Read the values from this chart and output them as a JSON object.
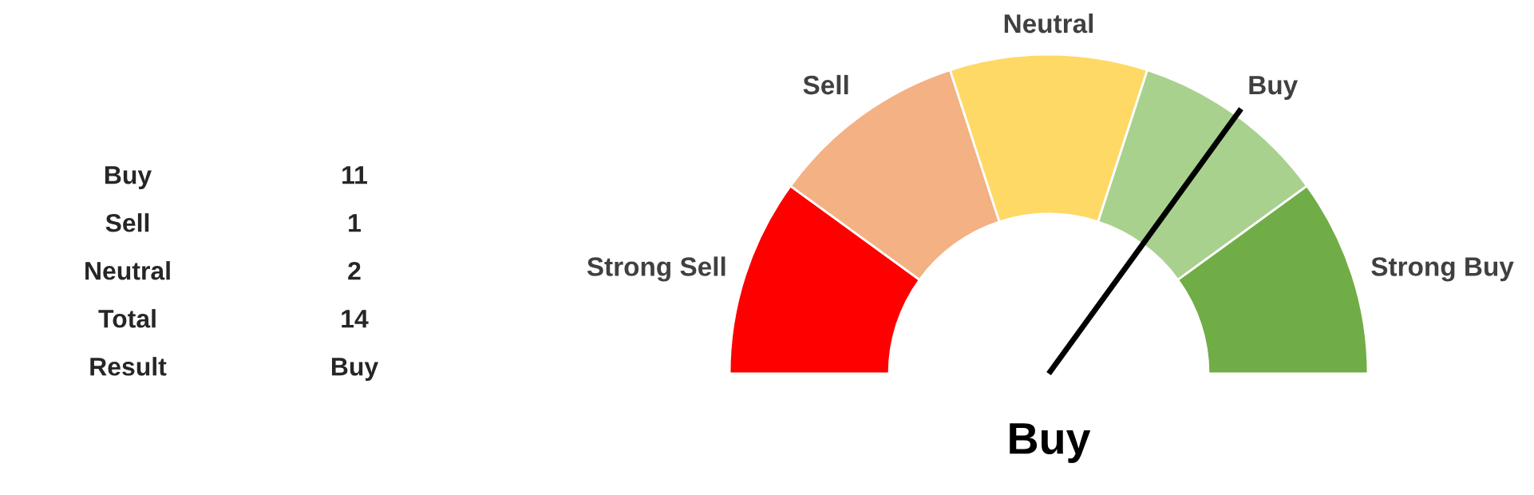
{
  "chart_data": [
    {
      "type": "other",
      "annotations": [
        "Buy",
        "11",
        "Sell",
        "1",
        "Neutral",
        "2",
        "Total",
        "14",
        "Result",
        "Buy"
      ]
    },
    {
      "type": "donut",
      "categories": [
        "Strong Sell",
        "Sell",
        "Neutral",
        "Buy",
        "Strong Buy"
      ],
      "values": [
        20,
        20,
        20,
        20,
        20
      ],
      "colors": [
        "#ff0000",
        "#f4b183",
        "#ffd966",
        "#a9d18e",
        "#70ad47"
      ],
      "needle": "Buy",
      "annotations": [
        "Buy"
      ]
    }
  ]
}
